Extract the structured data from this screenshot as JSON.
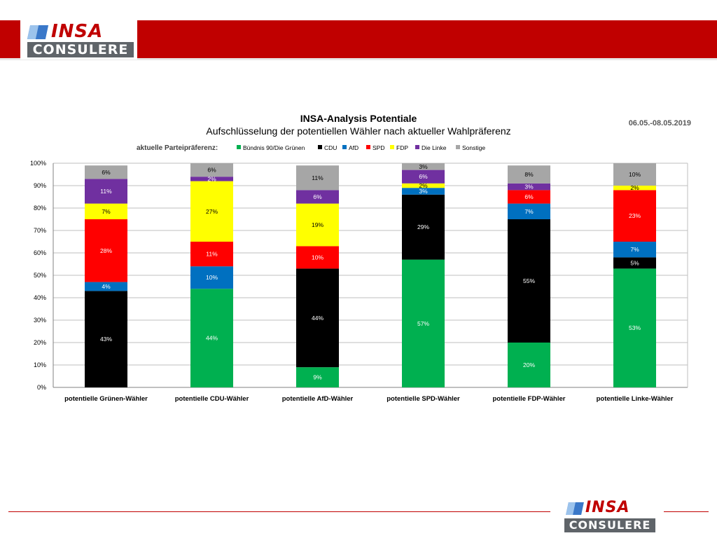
{
  "logo": {
    "top_text": "INSA",
    "bottom_text": "CONSULERE"
  },
  "title": "INSA-Analysis Potentiale",
  "subtitle": "Aufschlüsselung der potentiellen Wähler nach aktueller Wahlpräferenz",
  "date": "06.05.-08.05.2019",
  "legend_label": "aktuelle Parteipräferenz:",
  "chart_data": {
    "type": "bar",
    "stacked": true,
    "categories": [
      "potentielle Grünen-Wähler",
      "potentielle CDU-Wähler",
      "potentielle AfD-Wähler",
      "potentielle SPD-Wähler",
      "potentielle FDP-Wähler",
      "potentielle Linke-Wähler"
    ],
    "series": [
      {
        "name": "Bündnis 90/Die Grünen",
        "color": "#00b050",
        "text_color": "#ffffff",
        "values": [
          0,
          44,
          9,
          57,
          20,
          53
        ]
      },
      {
        "name": "CDU",
        "color": "#000000",
        "text_color": "#ffffff",
        "values": [
          43,
          0,
          44,
          29,
          55,
          5
        ]
      },
      {
        "name": "AfD",
        "color": "#0070c0",
        "text_color": "#ffffff",
        "values": [
          4,
          10,
          0,
          3,
          7,
          7
        ]
      },
      {
        "name": "SPD",
        "color": "#ff0000",
        "text_color": "#ffffff",
        "values": [
          28,
          11,
          10,
          0,
          6,
          23
        ]
      },
      {
        "name": "FDP",
        "color": "#ffff00",
        "text_color": "#000000",
        "values": [
          7,
          27,
          19,
          2,
          0,
          2
        ]
      },
      {
        "name": "Die Linke",
        "color": "#7030a0",
        "text_color": "#ffffff",
        "values": [
          11,
          2,
          6,
          6,
          3,
          0
        ]
      },
      {
        "name": "Sonstige",
        "color": "#a6a6a6",
        "text_color": "#000000",
        "values": [
          6,
          6,
          11,
          3,
          8,
          10
        ]
      }
    ],
    "ylim": [
      0,
      100
    ],
    "yticks": [
      "0%",
      "10%",
      "20%",
      "30%",
      "40%",
      "50%",
      "60%",
      "70%",
      "80%",
      "90%",
      "100%"
    ],
    "grid": true,
    "legend_position": "top"
  }
}
